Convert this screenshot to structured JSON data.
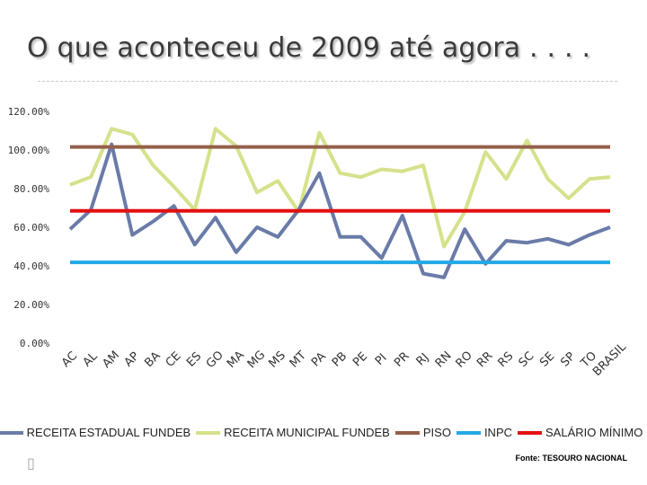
{
  "title": "O que aconteceu de 2009 até agora . . . .",
  "bullet_glyph": "▯",
  "source": "Fonte: TESOURO NACIONAL",
  "colors": {
    "estadual": "#6a7ba8",
    "municipal": "#d6e18b",
    "piso": "#94604a",
    "inpc": "#22a9e6",
    "salario": "#e31010",
    "axis_text": "#333333"
  },
  "chart_data": {
    "type": "line",
    "title": "O que aconteceu de 2009 até agora . . . .",
    "categories": [
      "AC",
      "AL",
      "AM",
      "AP",
      "BA",
      "CE",
      "ES",
      "GO",
      "MA",
      "MG",
      "MS",
      "MT",
      "PA",
      "PB",
      "PE",
      "PI",
      "PR",
      "RJ",
      "RN",
      "RO",
      "RR",
      "RS",
      "SC",
      "SE",
      "SP",
      "TO",
      "BRASIL"
    ],
    "y_ticks": [
      "0.00%",
      "20.00%",
      "40.00%",
      "60.00%",
      "80.00%",
      "100.00%",
      "120.00%"
    ],
    "ylim": [
      0,
      120
    ],
    "grid": false,
    "legend_position": "bottom",
    "series": [
      {
        "name": "RECEITA ESTADUAL FUNDEB",
        "color_key": "estadual",
        "values": [
          59,
          69,
          103,
          56,
          63,
          71,
          51,
          65,
          47,
          60,
          55,
          69,
          88,
          55,
          55,
          44,
          66,
          36,
          34,
          59,
          41,
          53,
          52,
          54,
          51,
          56,
          60
        ]
      },
      {
        "name": "RECEITA MUNICIPAL FUNDEB",
        "color_key": "municipal",
        "values": [
          82,
          86,
          111,
          108,
          92,
          81,
          69,
          111,
          102,
          78,
          84,
          68,
          109,
          88,
          86,
          90,
          89,
          92,
          50,
          68,
          99,
          85,
          105,
          85,
          75,
          85,
          86
        ]
      },
      {
        "name": "PISO",
        "color_key": "piso",
        "values": [
          101.6,
          101.6,
          101.6,
          101.6,
          101.6,
          101.6,
          101.6,
          101.6,
          101.6,
          101.6,
          101.6,
          101.6,
          101.6,
          101.6,
          101.6,
          101.6,
          101.6,
          101.6,
          101.6,
          101.6,
          101.6,
          101.6,
          101.6,
          101.6,
          101.6,
          101.6,
          101.6
        ]
      },
      {
        "name": "INPC",
        "color_key": "inpc",
        "values": [
          41.8,
          41.8,
          41.8,
          41.8,
          41.8,
          41.8,
          41.8,
          41.8,
          41.8,
          41.8,
          41.8,
          41.8,
          41.8,
          41.8,
          41.8,
          41.8,
          41.8,
          41.8,
          41.8,
          41.8,
          41.8,
          41.8,
          41.8,
          41.8,
          41.8,
          41.8,
          41.8
        ]
      },
      {
        "name": "SALÁRIO MÍNIMO",
        "color_key": "salario",
        "values": [
          68.5,
          68.5,
          68.5,
          68.5,
          68.5,
          68.5,
          68.5,
          68.5,
          68.5,
          68.5,
          68.5,
          68.5,
          68.5,
          68.5,
          68.5,
          68.5,
          68.5,
          68.5,
          68.5,
          68.5,
          68.5,
          68.5,
          68.5,
          68.5,
          68.5,
          68.5,
          68.5
        ]
      }
    ]
  }
}
